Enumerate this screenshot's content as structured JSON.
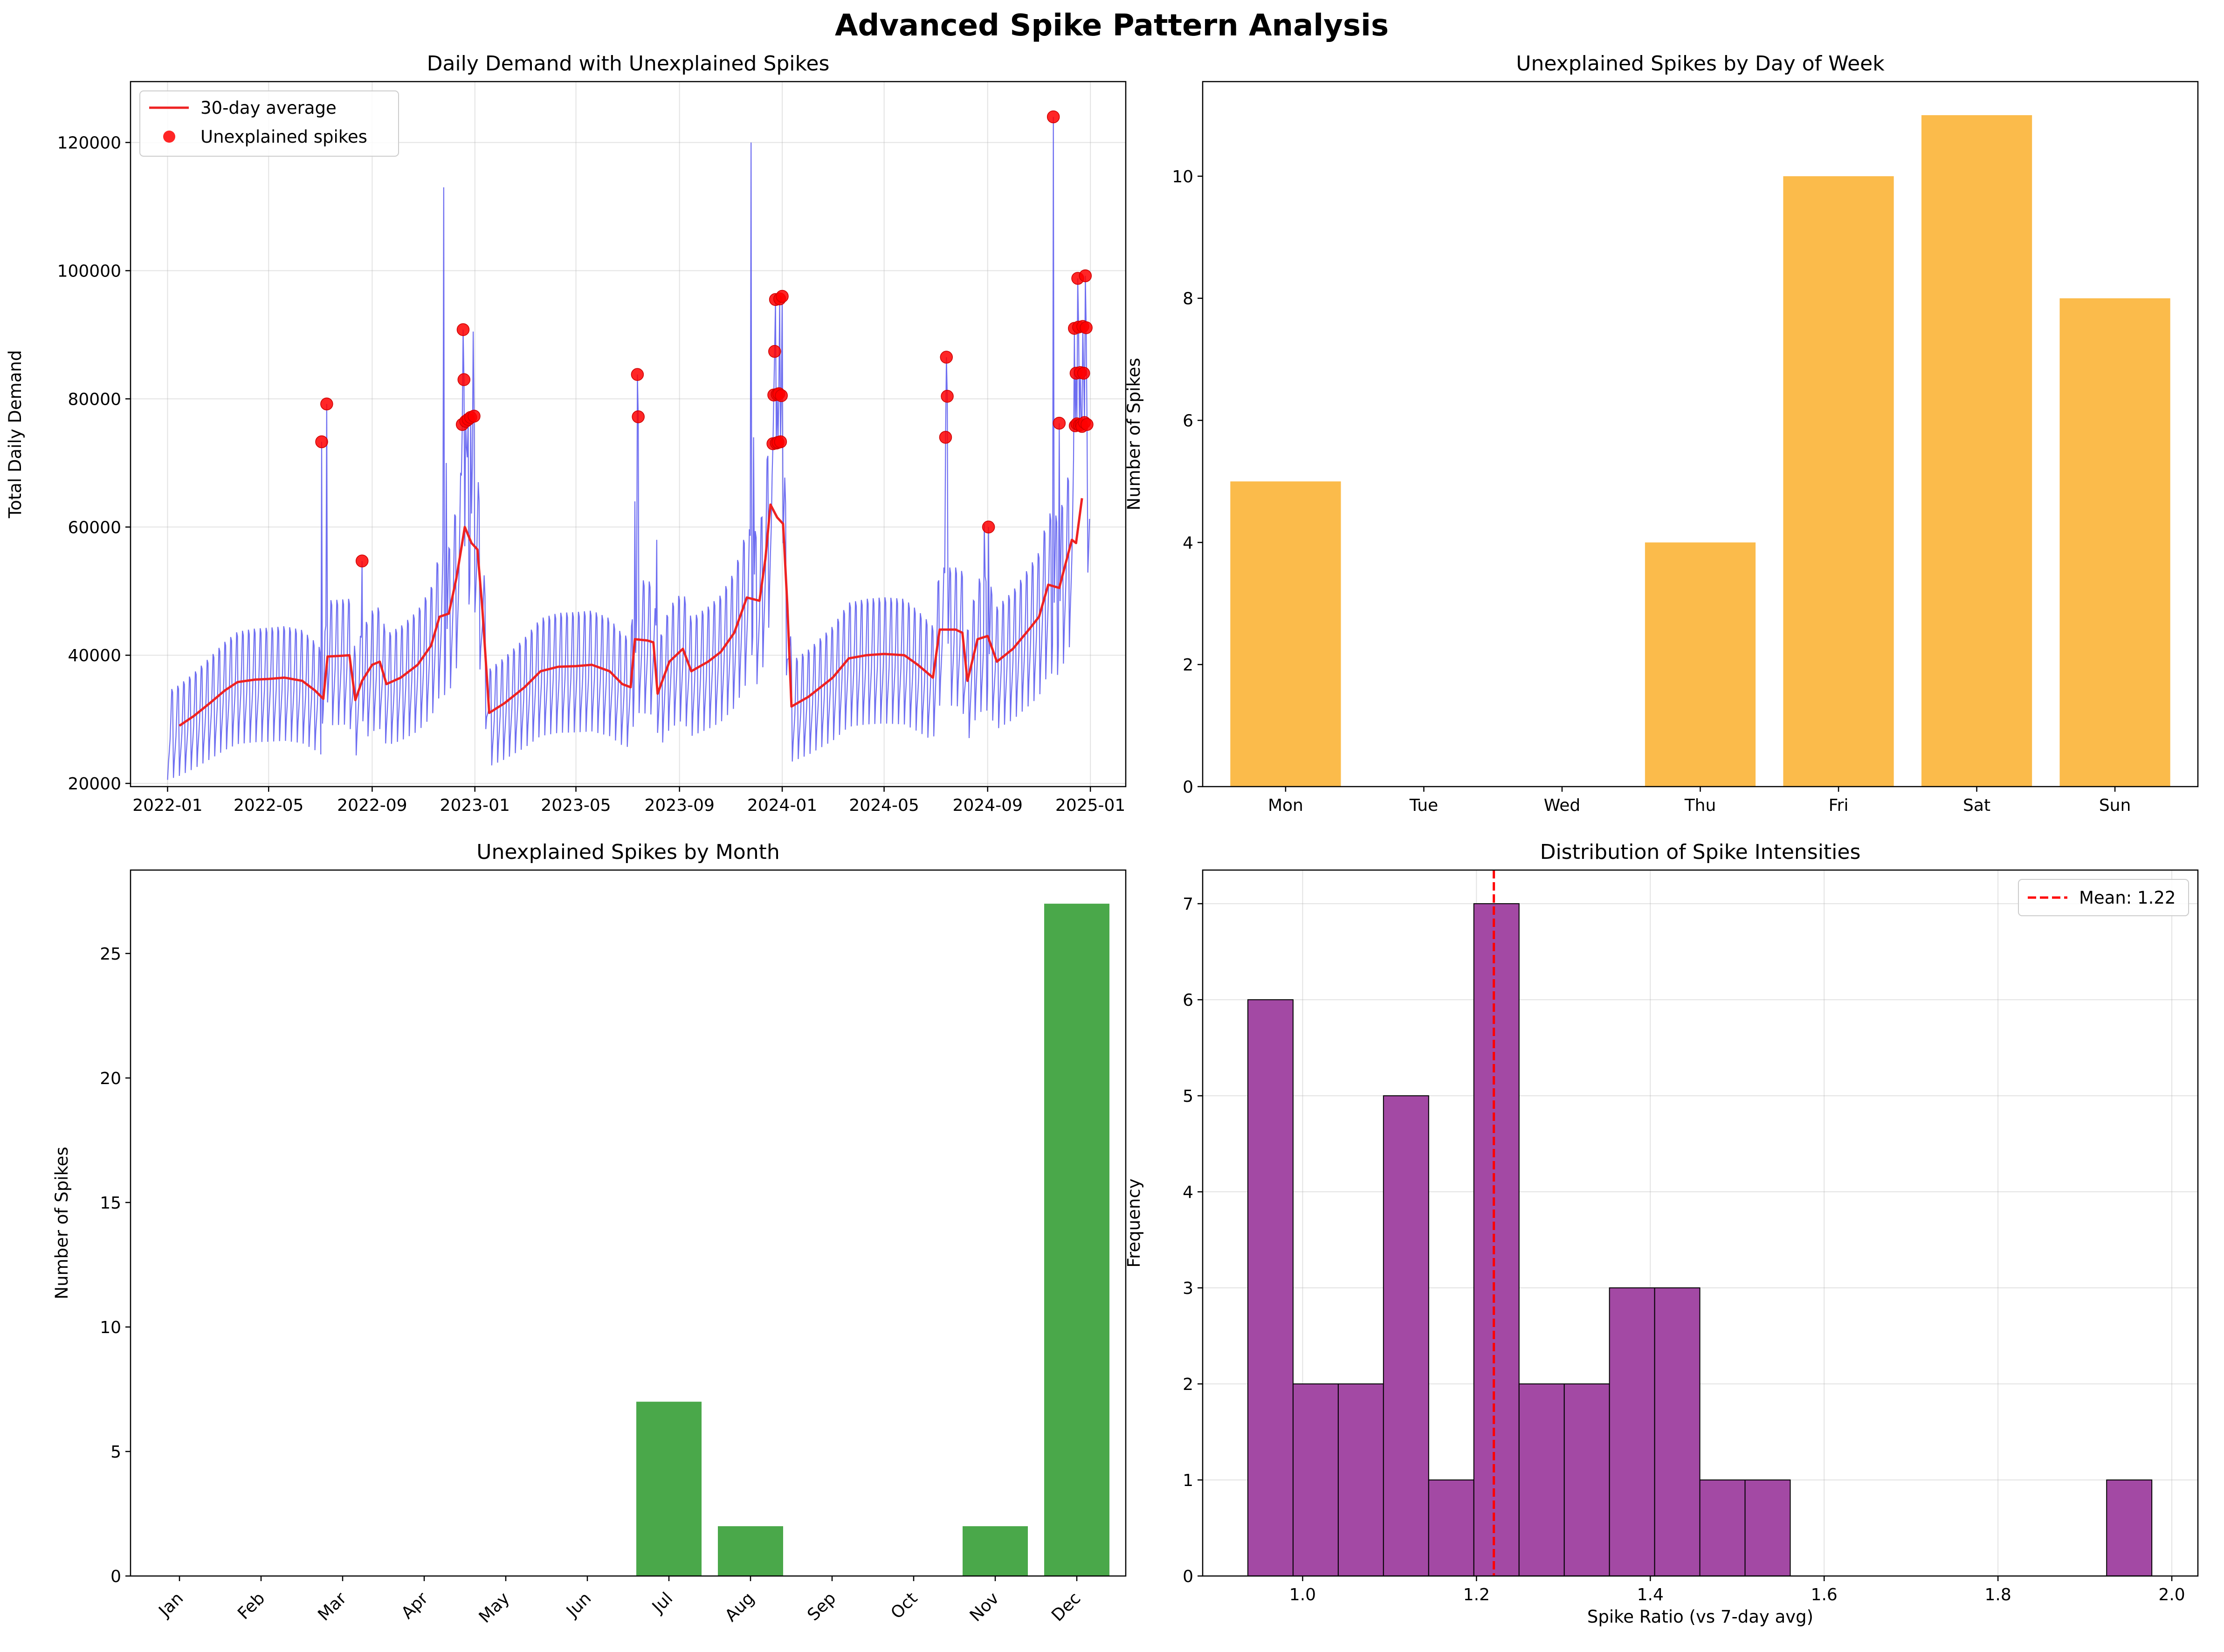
{
  "figure": {
    "title": "Advanced Spike Pattern Analysis"
  },
  "chart_data": [
    {
      "id": "demand",
      "type": "line",
      "title": "Daily Demand with Unexplained Spikes",
      "xlabel": "",
      "ylabel": "Total Daily Demand",
      "xlim": [
        "2021-11-18",
        "2025-02-12"
      ],
      "ylim": [
        19500,
        129500
      ],
      "x_ticks": [
        "2022-01",
        "2022-05",
        "2022-09",
        "2023-01",
        "2023-05",
        "2023-09",
        "2024-01",
        "2024-05",
        "2024-09",
        "2025-01"
      ],
      "y_ticks": [
        20000,
        40000,
        60000,
        80000,
        100000,
        120000
      ],
      "grid": true,
      "legend_position": "upper left",
      "daily_demand_color": "#5555ee",
      "average_color": "#ee2222",
      "spike_color": "#ff0000",
      "series": [
        {
          "name": "30-day average",
          "points": [
            [
              "2022-01-15",
              29000
            ],
            [
              "2022-02-01",
              30500
            ],
            [
              "2022-02-20",
              32500
            ],
            [
              "2022-03-10",
              34500
            ],
            [
              "2022-03-25",
              35800
            ],
            [
              "2022-04-15",
              36200
            ],
            [
              "2022-05-01",
              36300
            ],
            [
              "2022-05-20",
              36500
            ],
            [
              "2022-06-10",
              36000
            ],
            [
              "2022-06-25",
              34500
            ],
            [
              "2022-07-05",
              33200
            ],
            [
              "2022-07-10",
              39800
            ],
            [
              "2022-07-25",
              39900
            ],
            [
              "2022-08-05",
              40000
            ],
            [
              "2022-08-12",
              33000
            ],
            [
              "2022-08-20",
              36000
            ],
            [
              "2022-09-01",
              38500
            ],
            [
              "2022-09-10",
              39000
            ],
            [
              "2022-09-18",
              35500
            ],
            [
              "2022-10-05",
              36500
            ],
            [
              "2022-10-25",
              38500
            ],
            [
              "2022-11-10",
              41500
            ],
            [
              "2022-11-20",
              46000
            ],
            [
              "2022-12-01",
              46500
            ],
            [
              "2022-12-10",
              52000
            ],
            [
              "2022-12-15",
              56000
            ],
            [
              "2022-12-20",
              60000
            ],
            [
              "2022-12-28",
              57500
            ],
            [
              "2023-01-04",
              56500
            ],
            [
              "2023-01-10",
              47000
            ],
            [
              "2023-01-18",
              31000
            ],
            [
              "2023-02-05",
              32500
            ],
            [
              "2023-03-01",
              35000
            ],
            [
              "2023-03-20",
              37500
            ],
            [
              "2023-04-10",
              38200
            ],
            [
              "2023-05-01",
              38300
            ],
            [
              "2023-05-20",
              38500
            ],
            [
              "2023-06-10",
              37500
            ],
            [
              "2023-06-25",
              35500
            ],
            [
              "2023-07-05",
              35000
            ],
            [
              "2023-07-10",
              42500
            ],
            [
              "2023-07-25",
              42300
            ],
            [
              "2023-08-01",
              42000
            ],
            [
              "2023-08-06",
              34000
            ],
            [
              "2023-08-20",
              39000
            ],
            [
              "2023-09-05",
              41000
            ],
            [
              "2023-09-15",
              37500
            ],
            [
              "2023-10-05",
              39000
            ],
            [
              "2023-10-20",
              40500
            ],
            [
              "2023-11-05",
              43500
            ],
            [
              "2023-11-20",
              49000
            ],
            [
              "2023-12-05",
              48500
            ],
            [
              "2023-12-12",
              55000
            ],
            [
              "2023-12-18",
              63500
            ],
            [
              "2023-12-26",
              61500
            ],
            [
              "2024-01-02",
              60500
            ],
            [
              "2024-01-07",
              48000
            ],
            [
              "2024-01-12",
              32000
            ],
            [
              "2024-02-01",
              33500
            ],
            [
              "2024-03-01",
              36500
            ],
            [
              "2024-03-20",
              39500
            ],
            [
              "2024-04-10",
              40000
            ],
            [
              "2024-05-01",
              40200
            ],
            [
              "2024-05-25",
              40000
            ],
            [
              "2024-06-10",
              38500
            ],
            [
              "2024-06-28",
              36500
            ],
            [
              "2024-07-06",
              44000
            ],
            [
              "2024-07-25",
              44000
            ],
            [
              "2024-08-02",
              43500
            ],
            [
              "2024-08-08",
              36000
            ],
            [
              "2024-08-20",
              42500
            ],
            [
              "2024-09-01",
              43000
            ],
            [
              "2024-09-12",
              39000
            ],
            [
              "2024-10-01",
              41000
            ],
            [
              "2024-10-20",
              44000
            ],
            [
              "2024-11-01",
              46000
            ],
            [
              "2024-11-12",
              51000
            ],
            [
              "2024-11-25",
              50500
            ],
            [
              "2024-12-02",
              54000
            ],
            [
              "2024-12-10",
              58000
            ],
            [
              "2024-12-15",
              57500
            ],
            [
              "2024-12-22",
              64500
            ]
          ]
        },
        {
          "name": "Unexplained spikes",
          "points": [
            [
              "2022-07-03",
              73300
            ],
            [
              "2022-07-09",
              79200
            ],
            [
              "2022-08-20",
              54700
            ],
            [
              "2022-12-17",
              76000
            ],
            [
              "2022-12-18",
              90800
            ],
            [
              "2022-12-19",
              83000
            ],
            [
              "2022-12-21",
              76500
            ],
            [
              "2022-12-24",
              76800
            ],
            [
              "2022-12-27",
              77100
            ],
            [
              "2022-12-31",
              77300
            ],
            [
              "2023-07-13",
              83800
            ],
            [
              "2023-07-14",
              77200
            ],
            [
              "2023-12-21",
              73000
            ],
            [
              "2023-12-22",
              80600
            ],
            [
              "2023-12-23",
              87400
            ],
            [
              "2023-12-24",
              95500
            ],
            [
              "2023-12-25",
              73100
            ],
            [
              "2023-12-26",
              80700
            ],
            [
              "2023-12-27",
              73200
            ],
            [
              "2023-12-28",
              80800
            ],
            [
              "2023-12-29",
              95600
            ],
            [
              "2023-12-30",
              73300
            ],
            [
              "2023-12-31",
              80500
            ],
            [
              "2024-01-01",
              96000
            ],
            [
              "2024-07-13",
              74000
            ],
            [
              "2024-07-14",
              86500
            ],
            [
              "2024-07-15",
              80400
            ],
            [
              "2024-09-02",
              60000
            ],
            [
              "2024-11-18",
              124000
            ],
            [
              "2024-11-25",
              76200
            ],
            [
              "2024-12-13",
              91000
            ],
            [
              "2024-12-14",
              75800
            ],
            [
              "2024-12-15",
              84000
            ],
            [
              "2024-12-16",
              76100
            ],
            [
              "2024-12-17",
              98800
            ],
            [
              "2024-12-18",
              91200
            ],
            [
              "2024-12-19",
              75900
            ],
            [
              "2024-12-20",
              84100
            ],
            [
              "2024-12-21",
              76000
            ],
            [
              "2024-12-22",
              75700
            ],
            [
              "2024-12-23",
              91300
            ],
            [
              "2024-12-24",
              84000
            ],
            [
              "2024-12-25",
              76300
            ],
            [
              "2024-12-26",
              99200
            ],
            [
              "2024-12-27",
              91100
            ],
            [
              "2024-12-28",
              76000
            ]
          ]
        }
      ]
    },
    {
      "id": "dow",
      "type": "bar",
      "title": "Unexplained Spikes by Day of Week",
      "xlabel": "",
      "ylabel": "Number of Spikes",
      "categories": [
        "Mon",
        "Tue",
        "Wed",
        "Thu",
        "Fri",
        "Sat",
        "Sun"
      ],
      "values": [
        5,
        0,
        0,
        4,
        10,
        11,
        8
      ],
      "ylim": [
        0,
        11.55
      ],
      "y_ticks": [
        0,
        2,
        4,
        6,
        8,
        10
      ],
      "color": "#fbbb4b",
      "grid": false
    },
    {
      "id": "month",
      "type": "bar",
      "title": "Unexplained Spikes by Month",
      "xlabel": "",
      "ylabel": "Number of Spikes",
      "categories": [
        "Jan",
        "Feb",
        "Mar",
        "Apr",
        "May",
        "Jun",
        "Jul",
        "Aug",
        "Sep",
        "Oct",
        "Nov",
        "Dec"
      ],
      "values": [
        0,
        0,
        0,
        0,
        0,
        0,
        7,
        2,
        0,
        0,
        2,
        27
      ],
      "ylim": [
        0,
        28.35
      ],
      "y_ticks": [
        0,
        5,
        10,
        15,
        20,
        25
      ],
      "color": "#4aa84a",
      "grid": false
    },
    {
      "id": "hist",
      "type": "bar",
      "title": "Distribution of Spike Intensities",
      "xlabel": "Spike Ratio (vs 7-day avg)",
      "ylabel": "Frequency",
      "bin_start": 0.937,
      "bin_width": 0.052,
      "counts": [
        6,
        2,
        2,
        5,
        1,
        7,
        2,
        2,
        3,
        3,
        1,
        1,
        0,
        0,
        0,
        0,
        0,
        0,
        0,
        1
      ],
      "xlim": [
        0.885,
        2.03
      ],
      "ylim": [
        0,
        7.35
      ],
      "x_ticks": [
        1.0,
        1.2,
        1.4,
        1.6,
        1.8,
        2.0
      ],
      "y_ticks": [
        0,
        1,
        2,
        3,
        4,
        5,
        6,
        7
      ],
      "mean": 1.22,
      "mean_label": "Mean: 1.22",
      "color": "#a349a4",
      "mean_color": "#ff0000",
      "grid": true,
      "legend_position": "upper right"
    }
  ]
}
